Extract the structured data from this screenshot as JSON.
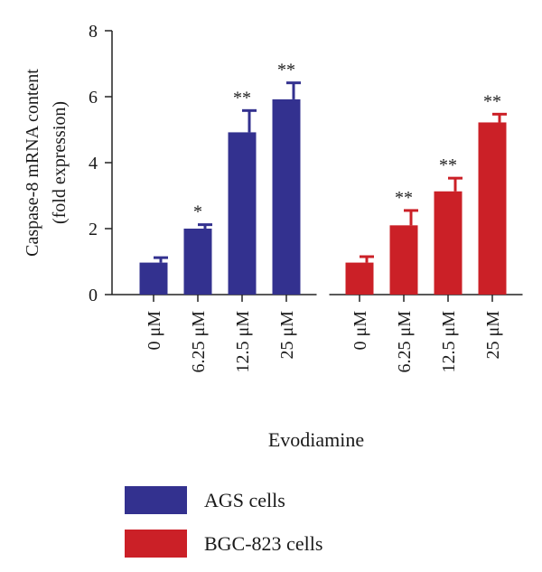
{
  "chart_data": {
    "type": "bar",
    "ylabel_lines": [
      "Caspase-8 mRNA content",
      "(fold expression)"
    ],
    "xlabel": "Evodiamine",
    "ylim": [
      0,
      8
    ],
    "yticks": [
      "0",
      "2",
      "4",
      "6",
      "8"
    ],
    "grid": false,
    "legend_position": "bottom",
    "groups": [
      {
        "name": "AGS cells",
        "color": "#33318f",
        "categories": [
          "0 μM",
          "6.25 μM",
          "12.5 μM",
          "25 μM"
        ],
        "values": [
          0.97,
          2.0,
          4.92,
          5.92
        ],
        "errors": [
          0.15,
          0.12,
          0.66,
          0.5
        ],
        "significance": [
          "",
          "*",
          "**",
          "**"
        ]
      },
      {
        "name": "BGC-823 cells",
        "color": "#cb2027",
        "categories": [
          "0 μM",
          "6.25 μM",
          "12.5 μM",
          "25 μM"
        ],
        "values": [
          0.97,
          2.1,
          3.13,
          5.22
        ],
        "errors": [
          0.18,
          0.45,
          0.4,
          0.25
        ],
        "significance": [
          "",
          "**",
          "**",
          "**"
        ]
      }
    ],
    "legend": [
      {
        "label": "AGS cells",
        "color": "#33318f"
      },
      {
        "label": "BGC-823 cells",
        "color": "#cb2027"
      }
    ]
  }
}
